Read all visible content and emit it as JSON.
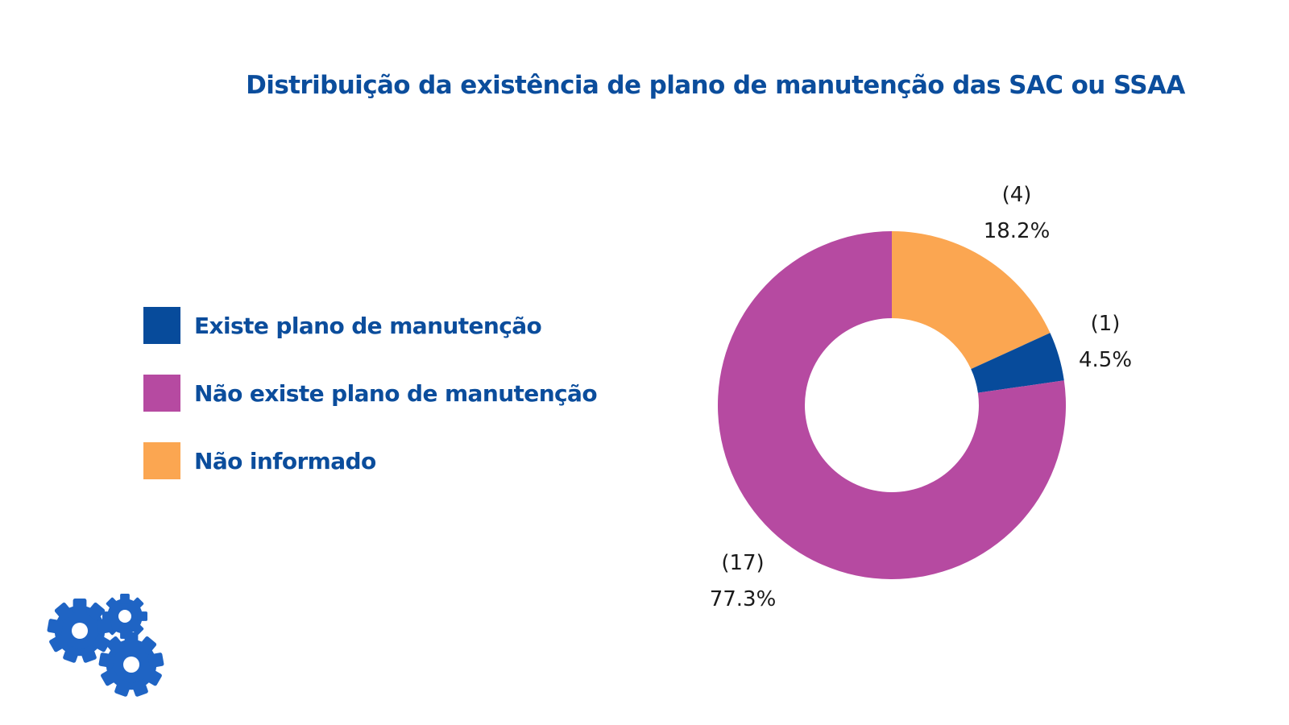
{
  "chart_data": {
    "type": "pie",
    "title": "Distribuição da existência de plano de manutenção das SAC ou SSAA",
    "legend_position": "left",
    "slices": [
      {
        "label": "Não informado",
        "count_label": "(4)",
        "percent_label": "18.2%",
        "value": 4,
        "color": "#fba651"
      },
      {
        "label": "Existe plano de manutenção",
        "count_label": "(1)",
        "percent_label": "4.5%",
        "value": 1,
        "color": "#074b9b"
      },
      {
        "label": "Não existe plano de manutenção",
        "count_label": "(17)",
        "percent_label": "77.3%",
        "value": 17,
        "color": "#b64aa1"
      }
    ],
    "legend": [
      {
        "label": "Existe plano de manutenção",
        "color": "#074b9b"
      },
      {
        "label": "Não existe plano de manutenção",
        "color": "#b64aa1"
      },
      {
        "label": "Não informado",
        "color": "#fba651"
      }
    ]
  },
  "decoration": {
    "icon": "gears-icon",
    "color": "#1f64c4"
  }
}
